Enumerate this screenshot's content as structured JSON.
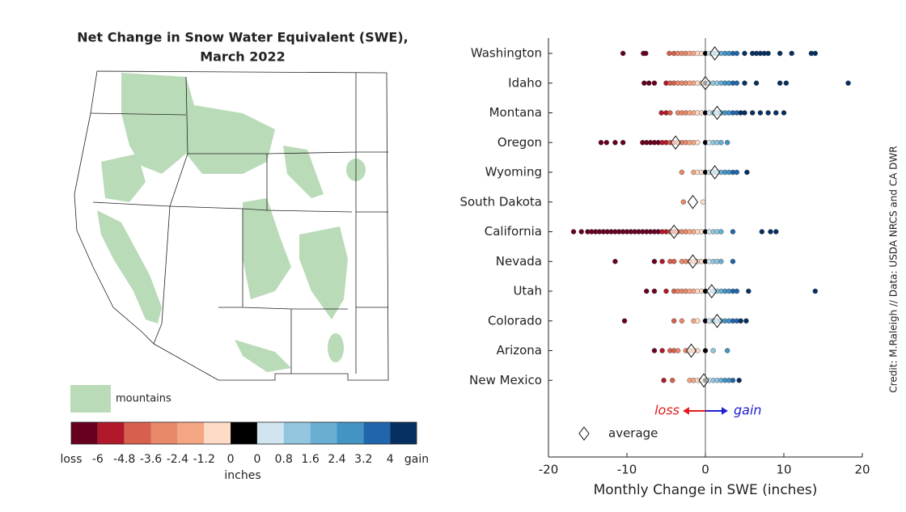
{
  "chart_data": [
    {
      "type": "map",
      "title": [
        "Net Change in Snow Water Equivalent (SWE),",
        "March 2022"
      ],
      "legend": "mountains",
      "colorbar": {
        "ticks": [
          "loss",
          -6,
          -4.8,
          -3.6,
          -2.4,
          -1.2,
          0,
          0,
          0.8,
          1.6,
          2.4,
          3.2,
          4,
          "gain"
        ],
        "colors": [
          "#67001f",
          "#b2182b",
          "#d6604d",
          "#e8896b",
          "#f4a582",
          "#fddbc7",
          "#000000",
          "#d1e5f0",
          "#92c5de",
          "#6aaed2",
          "#4393c3",
          "#2166ac",
          "#053061"
        ],
        "label": "inches"
      }
    },
    {
      "type": "strip",
      "categories": [
        "Washington",
        "Idaho",
        "Montana",
        "Oregon",
        "Wyoming",
        "South Dakota",
        "California",
        "Nevada",
        "Utah",
        "Colorado",
        "Arizona",
        "New Mexico"
      ],
      "values": [
        [
          -10.5,
          -7.9,
          -7.6,
          -4.6,
          -4,
          -3.5,
          -3,
          -2.5,
          -2,
          -1.5,
          -1,
          -0.5,
          0,
          0.5,
          1,
          1.5,
          2,
          2.5,
          3,
          3.5,
          4,
          5,
          6,
          6.5,
          7,
          7.5,
          8,
          9.5,
          11,
          13.5,
          14
        ],
        [
          -7.8,
          -7.2,
          -6.5,
          -5,
          -4.5,
          -4,
          -3.5,
          -3,
          -2.5,
          -2,
          -1.5,
          -1,
          -0.5,
          0,
          0.5,
          1,
          1.5,
          2,
          2.5,
          3,
          3.5,
          4,
          5,
          6.5,
          9.5,
          10.3,
          18.2
        ],
        [
          -5.6,
          -5,
          -4.5,
          -3.5,
          -3,
          -2.5,
          -2,
          -1.5,
          -1,
          -0.5,
          0,
          0.5,
          1,
          1.5,
          2,
          2.5,
          3,
          3.5,
          4,
          4.5,
          5,
          6,
          7,
          8,
          9,
          10
        ],
        [
          -13.3,
          -12.6,
          -11.5,
          -10.5,
          -8,
          -7.5,
          -7,
          -6.5,
          -6,
          -5.5,
          -5,
          -4.5,
          -4,
          -3.5,
          -3,
          -2.5,
          -2,
          -1.5,
          -1,
          0,
          0.5,
          1,
          1.5,
          2,
          2.8
        ],
        [
          -3,
          -1.5,
          -1,
          -0.5,
          0,
          0.5,
          1,
          1.5,
          2,
          2.5,
          3,
          3.5,
          4,
          5.3
        ],
        [
          -2.8,
          -0.3
        ],
        [
          -16.8,
          -15.8,
          -15,
          -14.5,
          -14,
          -13.5,
          -13,
          -12.5,
          -12,
          -11.5,
          -11,
          -10.5,
          -10,
          -9.5,
          -9,
          -8.5,
          -8,
          -7.5,
          -7,
          -6.5,
          -6,
          -5.5,
          -5,
          -4.5,
          -4,
          -3.5,
          -3,
          -2.5,
          -2,
          -1.5,
          -1,
          -0.5,
          0,
          0.5,
          1,
          1.5,
          2,
          3.5,
          7.2,
          8.3,
          9
        ],
        [
          -11.5,
          -6.5,
          -5.5,
          -4.5,
          -4,
          -3,
          -2.5,
          -2,
          -1.5,
          -1,
          -0.5,
          0,
          0.5,
          1,
          1.5,
          2,
          3.5
        ],
        [
          -7.5,
          -6.5,
          -5,
          -4,
          -3.5,
          -3,
          -2.5,
          -2,
          -1.5,
          -1,
          -0.5,
          0,
          0.5,
          1,
          1.5,
          2,
          2.5,
          3,
          3.5,
          4,
          5.5,
          14
        ],
        [
          -10.3,
          -4,
          -3,
          -1.5,
          -1,
          0,
          0.5,
          1,
          1.5,
          2,
          2.5,
          3,
          3.5,
          4,
          4.5,
          5.2
        ],
        [
          -6.5,
          -5.5,
          -4.5,
          -4,
          -3.5,
          -2.5,
          -2,
          -1.5,
          -1,
          0,
          1,
          2.8
        ],
        [
          -5.3,
          -4.2,
          -2,
          -1.5,
          -1,
          -0.5,
          0,
          0.5,
          1,
          1.5,
          2,
          2.5,
          3,
          3.5,
          4.3
        ]
      ],
      "averages": [
        1.2,
        0,
        1.5,
        -3.8,
        1.2,
        -1.6,
        -4,
        -1.6,
        0.8,
        1.5,
        -1.8,
        -0.2
      ],
      "xlim": [
        -20,
        20
      ],
      "xticks": [
        -20,
        -10,
        0,
        10,
        20
      ],
      "xlabel": "Monthly Change in SWE (inches)",
      "annotations": {
        "loss": "loss",
        "gain": "gain"
      },
      "legend": "average",
      "credit": "Credit: M.Raleigh // Data: USDA NRCS and CA DWR"
    }
  ]
}
